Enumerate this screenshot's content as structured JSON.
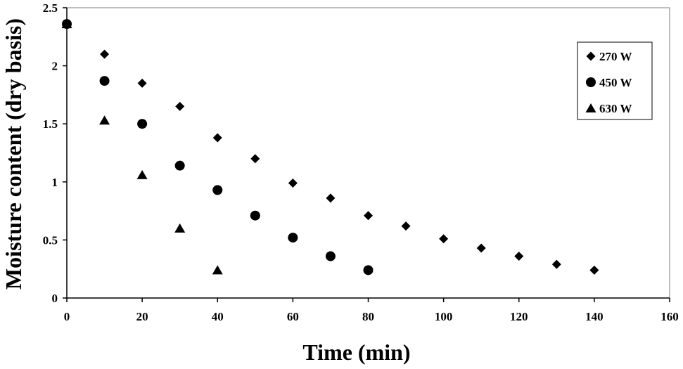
{
  "chart_data": {
    "type": "scatter",
    "title": "",
    "xlabel": "Time (min)",
    "ylabel": "Moisture content (dry basis)",
    "xlim": [
      0,
      160
    ],
    "ylim": [
      0,
      2.5
    ],
    "xticks": [
      "0",
      "20",
      "40",
      "60",
      "80",
      "100",
      "120",
      "140",
      "160"
    ],
    "yticks": [
      "0",
      "0.5",
      "1",
      "1.5",
      "2",
      "2.5"
    ],
    "grid": false,
    "legend_position": "top-right",
    "series": [
      {
        "name": "270 W",
        "marker": "diamond",
        "color": "#000000",
        "points": [
          [
            0,
            2.36
          ],
          [
            10,
            2.1
          ],
          [
            20,
            1.85
          ],
          [
            30,
            1.65
          ],
          [
            40,
            1.38
          ],
          [
            50,
            1.2
          ],
          [
            60,
            0.99
          ],
          [
            70,
            0.86
          ],
          [
            80,
            0.71
          ],
          [
            90,
            0.62
          ],
          [
            100,
            0.51
          ],
          [
            110,
            0.43
          ],
          [
            120,
            0.36
          ],
          [
            130,
            0.29
          ],
          [
            140,
            0.24
          ]
        ]
      },
      {
        "name": "450 W",
        "marker": "circle",
        "color": "#000000",
        "points": [
          [
            0,
            2.36
          ],
          [
            10,
            1.87
          ],
          [
            20,
            1.5
          ],
          [
            30,
            1.14
          ],
          [
            40,
            0.93
          ],
          [
            50,
            0.71
          ],
          [
            60,
            0.52
          ],
          [
            70,
            0.36
          ],
          [
            80,
            0.24
          ]
        ]
      },
      {
        "name": "630 W",
        "marker": "triangle",
        "color": "#000000",
        "points": [
          [
            0,
            2.36
          ],
          [
            10,
            1.53
          ],
          [
            20,
            1.06
          ],
          [
            30,
            0.6
          ],
          [
            40,
            0.24
          ]
        ]
      }
    ]
  }
}
